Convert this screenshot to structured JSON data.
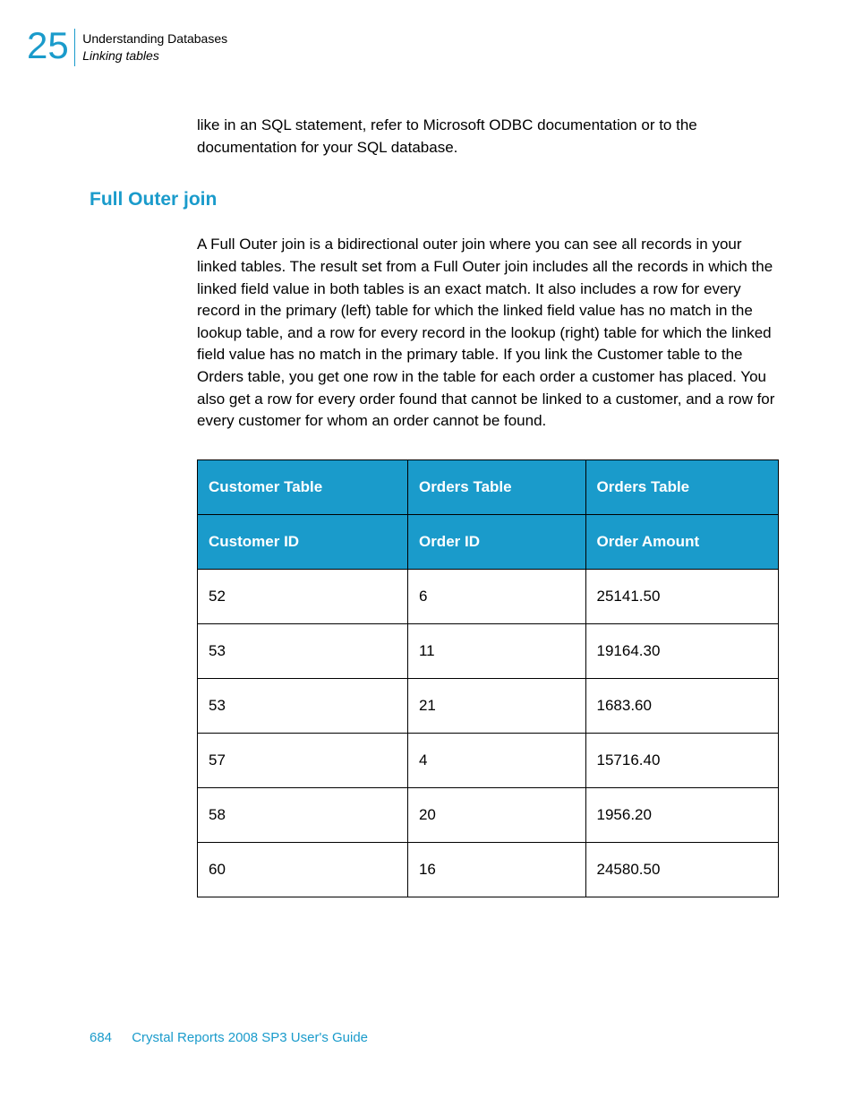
{
  "header": {
    "chapter_number": "25",
    "chapter_title": "Understanding Databases",
    "section_title": "Linking tables"
  },
  "intro_paragraph": "like in an SQL statement, refer to Microsoft ODBC documentation or to the documentation for your SQL database.",
  "section_heading": "Full Outer join",
  "section_body": "A Full Outer join is a bidirectional outer join where you can see all records in your linked tables. The result set from a Full Outer join includes all the records in which the linked field value in both tables is an exact match. It also includes a row for every record in the primary (left) table for which the linked field value has no match in the lookup table, and a row for every record in the lookup (right) table for which the linked field value has no match in the primary table. If you link the Customer table to the Orders table, you get one row in the table for each order a customer has placed. You also get a row for every order found that cannot be linked to a customer, and a row for every customer for whom an order cannot be found.",
  "table": {
    "type": "table",
    "header_row1": [
      "Customer Table",
      "Orders Table",
      "Orders Table"
    ],
    "header_row2": [
      "Customer ID",
      "Order ID",
      "Order Amount"
    ],
    "rows": [
      [
        "52",
        "6",
        "25141.50"
      ],
      [
        "53",
        "11",
        "19164.30"
      ],
      [
        "53",
        "21",
        "1683.60"
      ],
      [
        "57",
        "4",
        "15716.40"
      ],
      [
        "58",
        "20",
        "1956.20"
      ],
      [
        "60",
        "16",
        "24580.50"
      ]
    ],
    "header_bg": "#1a9bcb",
    "header_fg": "#ffffff",
    "border_color": "#000000",
    "col_widths_pct": [
      33.3,
      33.3,
      33.4
    ]
  },
  "footer": {
    "page_number": "684",
    "doc_title": "Crystal Reports 2008 SP3 User's Guide"
  },
  "colors": {
    "accent": "#1a9bcb",
    "text": "#000000",
    "bg": "#ffffff"
  }
}
